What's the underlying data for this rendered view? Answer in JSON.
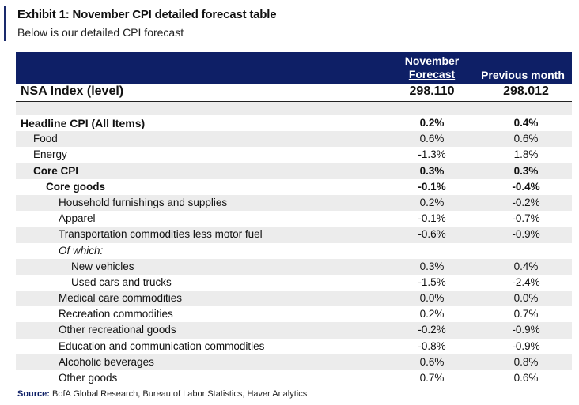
{
  "title": "Exhibit 1: November CPI detailed forecast table",
  "subtitle": "Below is our detailed CPI forecast",
  "columns": {
    "c1_line1": "November",
    "c1_line2": "Forecast",
    "c2": "Previous month"
  },
  "nsa": {
    "label": "NSA Index (level)",
    "v1": "298.110",
    "v2": "298.012"
  },
  "rows": [
    {
      "label": "Headline CPI (All Items)",
      "v1": "0.2%",
      "v2": "0.4%"
    },
    {
      "label": "Food",
      "v1": "0.6%",
      "v2": "0.6%"
    },
    {
      "label": "Energy",
      "v1": "-1.3%",
      "v2": "1.8%"
    },
    {
      "label": "Core CPI",
      "v1": "0.3%",
      "v2": "0.3%"
    },
    {
      "label": "Core goods",
      "v1": "-0.1%",
      "v2": "-0.4%"
    },
    {
      "label": "Household furnishings and supplies",
      "v1": "0.2%",
      "v2": "-0.2%"
    },
    {
      "label": "Apparel",
      "v1": "-0.1%",
      "v2": "-0.7%"
    },
    {
      "label": "Transportation commodities less motor fuel",
      "v1": "-0.6%",
      "v2": "-0.9%"
    },
    {
      "label": "Of which:",
      "v1": "",
      "v2": ""
    },
    {
      "label": "New vehicles",
      "v1": "0.3%",
      "v2": "0.4%"
    },
    {
      "label": "Used cars and trucks",
      "v1": "-1.5%",
      "v2": "-2.4%"
    },
    {
      "label": "Medical care commodities",
      "v1": "0.0%",
      "v2": "0.0%"
    },
    {
      "label": "Recreation commodities",
      "v1": "0.2%",
      "v2": "0.7%"
    },
    {
      "label": "Other recreational goods",
      "v1": "-0.2%",
      "v2": "-0.9%"
    },
    {
      "label": "Education and communication commodities",
      "v1": "-0.8%",
      "v2": "-0.9%"
    },
    {
      "label": "Alcoholic beverages",
      "v1": "0.6%",
      "v2": "0.8%"
    },
    {
      "label": "Other goods",
      "v1": "0.7%",
      "v2": "0.6%"
    }
  ],
  "source": {
    "label": "Source:",
    "text": "BofA Global Research, Bureau of Labor Statistics, Haver Analytics"
  },
  "colors": {
    "header_bg": "#0e1f66",
    "row_shade": "#ececec",
    "accent_bar": "#1a2a6c"
  }
}
